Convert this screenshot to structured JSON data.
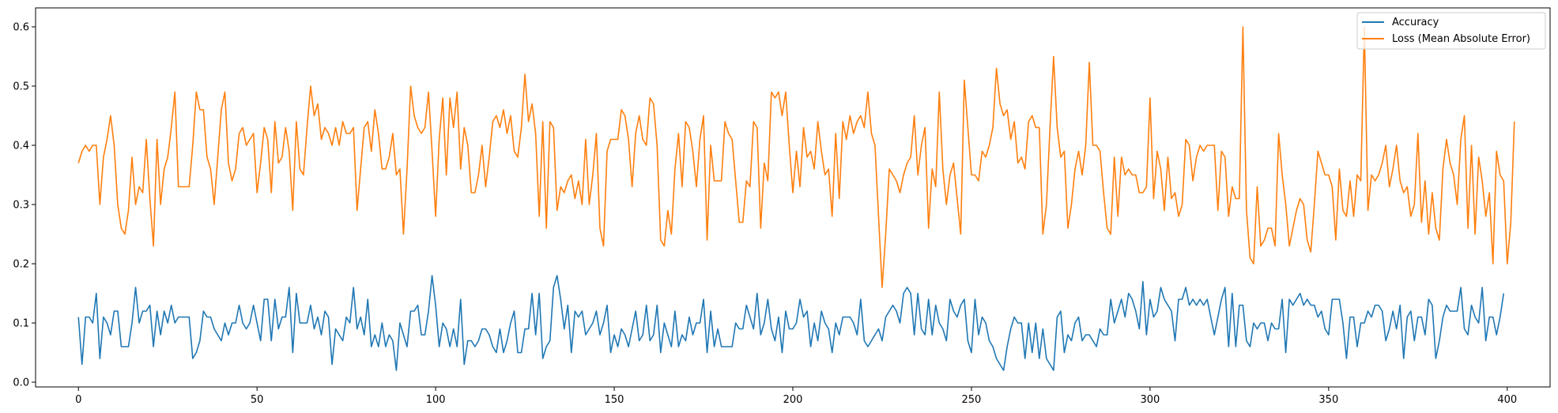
{
  "chart_data": {
    "type": "line",
    "title": "",
    "xlabel": "",
    "ylabel": "",
    "xlim": [
      -12,
      412
    ],
    "ylim": [
      -0.008,
      0.632
    ],
    "xticks": [
      0,
      50,
      100,
      150,
      200,
      250,
      300,
      350,
      400
    ],
    "yticks": [
      0.0,
      0.1,
      0.2,
      0.3,
      0.4,
      0.5,
      0.6
    ],
    "grid": false,
    "legend_position": "top-right",
    "series": [
      {
        "name": "Accuracy",
        "color": "#1f77b4",
        "x_start": 0,
        "values": [
          0.11,
          0.03,
          0.11,
          0.11,
          0.1,
          0.15,
          0.04,
          0.11,
          0.1,
          0.08,
          0.12,
          0.12,
          0.06,
          0.06,
          0.06,
          0.1,
          0.16,
          0.1,
          0.12,
          0.12,
          0.13,
          0.06,
          0.12,
          0.08,
          0.12,
          0.1,
          0.13,
          0.1,
          0.11,
          0.11,
          0.11,
          0.11,
          0.04,
          0.05,
          0.07,
          0.12,
          0.11,
          0.11,
          0.09,
          0.08,
          0.07,
          0.1,
          0.08,
          0.1,
          0.1,
          0.13,
          0.1,
          0.09,
          0.1,
          0.13,
          0.1,
          0.07,
          0.14,
          0.14,
          0.07,
          0.14,
          0.09,
          0.11,
          0.11,
          0.16,
          0.05,
          0.15,
          0.1,
          0.1,
          0.1,
          0.13,
          0.09,
          0.11,
          0.08,
          0.12,
          0.11,
          0.03,
          0.09,
          0.08,
          0.07,
          0.11,
          0.1,
          0.16,
          0.09,
          0.11,
          0.08,
          0.14,
          0.06,
          0.08,
          0.06,
          0.1,
          0.06,
          0.08,
          0.07,
          0.02,
          0.1,
          0.08,
          0.06,
          0.12,
          0.12,
          0.13,
          0.08,
          0.08,
          0.12,
          0.18,
          0.13,
          0.06,
          0.1,
          0.09,
          0.06,
          0.09,
          0.06,
          0.14,
          0.03,
          0.07,
          0.07,
          0.06,
          0.07,
          0.09,
          0.09,
          0.08,
          0.06,
          0.05,
          0.09,
          0.05,
          0.07,
          0.1,
          0.12,
          0.05,
          0.05,
          0.09,
          0.09,
          0.15,
          0.08,
          0.15,
          0.04,
          0.06,
          0.07,
          0.16,
          0.18,
          0.14,
          0.09,
          0.13,
          0.05,
          0.12,
          0.11,
          0.12,
          0.08,
          0.09,
          0.1,
          0.12,
          0.08,
          0.1,
          0.13,
          0.05,
          0.08,
          0.06,
          0.09,
          0.08,
          0.06,
          0.09,
          0.12,
          0.07,
          0.08,
          0.13,
          0.07,
          0.08,
          0.13,
          0.05,
          0.1,
          0.08,
          0.06,
          0.12,
          0.06,
          0.08,
          0.07,
          0.11,
          0.08,
          0.1,
          0.1,
          0.14,
          0.05,
          0.12,
          0.06,
          0.09,
          0.06,
          0.06,
          0.06,
          0.06,
          0.1,
          0.09,
          0.09,
          0.13,
          0.11,
          0.09,
          0.15,
          0.08,
          0.1,
          0.14,
          0.09,
          0.07,
          0.11,
          0.05,
          0.12,
          0.09,
          0.09,
          0.1,
          0.14,
          0.11,
          0.12,
          0.06,
          0.1,
          0.07,
          0.12,
          0.1,
          0.09,
          0.05,
          0.1,
          0.08,
          0.11,
          0.11,
          0.11,
          0.1,
          0.08,
          0.14,
          0.07,
          0.06,
          0.07,
          0.08,
          0.09,
          0.07,
          0.11,
          0.12,
          0.13,
          0.12,
          0.1,
          0.15,
          0.16,
          0.15,
          0.08,
          0.15,
          0.09,
          0.08,
          0.14,
          0.08,
          0.13,
          0.1,
          0.09,
          0.07,
          0.14,
          0.12,
          0.11,
          0.13,
          0.14,
          0.07,
          0.05,
          0.14,
          0.08,
          0.11,
          0.1,
          0.07,
          0.06,
          0.04,
          0.03,
          0.02,
          0.06,
          0.09,
          0.11,
          0.1,
          0.1,
          0.04,
          0.1,
          0.05,
          0.1,
          0.04,
          0.09,
          0.04,
          0.03,
          0.02,
          0.11,
          0.12,
          0.05,
          0.08,
          0.07,
          0.1,
          0.11,
          0.07,
          0.08,
          0.08,
          0.07,
          0.06,
          0.09,
          0.08,
          0.08,
          0.14,
          0.1,
          0.12,
          0.14,
          0.11,
          0.15,
          0.14,
          0.12,
          0.09,
          0.17,
          0.08,
          0.14,
          0.11,
          0.12,
          0.16,
          0.14,
          0.13,
          0.12,
          0.07,
          0.14,
          0.14,
          0.16,
          0.13,
          0.14,
          0.13,
          0.14,
          0.13,
          0.14,
          0.11,
          0.08,
          0.11,
          0.14,
          0.16,
          0.06,
          0.15,
          0.06,
          0.13,
          0.13,
          0.07,
          0.06,
          0.1,
          0.09,
          0.1,
          0.1,
          0.07,
          0.1,
          0.09,
          0.09,
          0.14,
          0.05,
          0.14,
          0.13,
          0.14,
          0.15,
          0.13,
          0.14,
          0.13,
          0.13,
          0.11,
          0.12,
          0.09,
          0.08,
          0.14,
          0.14,
          0.14,
          0.1,
          0.04,
          0.11,
          0.11,
          0.06,
          0.1,
          0.1,
          0.12,
          0.11,
          0.13,
          0.13,
          0.12,
          0.07,
          0.09,
          0.12,
          0.09,
          0.13,
          0.04,
          0.11,
          0.12,
          0.07,
          0.11,
          0.11,
          0.08,
          0.14,
          0.13,
          0.04,
          0.07,
          0.11,
          0.13,
          0.12,
          0.12,
          0.12,
          0.16,
          0.09,
          0.08,
          0.13,
          0.11,
          0.1,
          0.16,
          0.07,
          0.11,
          0.11,
          0.08,
          0.11,
          0.15
        ]
      },
      {
        "name": "Loss (Mean Absolute Error)",
        "color": "#ff7f0e",
        "x_start": 0,
        "values": [
          0.37,
          0.39,
          0.4,
          0.39,
          0.4,
          0.4,
          0.3,
          0.38,
          0.41,
          0.45,
          0.4,
          0.3,
          0.26,
          0.25,
          0.29,
          0.38,
          0.3,
          0.33,
          0.32,
          0.41,
          0.31,
          0.23,
          0.41,
          0.3,
          0.36,
          0.38,
          0.43,
          0.49,
          0.33,
          0.33,
          0.33,
          0.33,
          0.4,
          0.49,
          0.46,
          0.46,
          0.38,
          0.36,
          0.3,
          0.38,
          0.46,
          0.49,
          0.37,
          0.34,
          0.36,
          0.42,
          0.43,
          0.4,
          0.41,
          0.42,
          0.32,
          0.37,
          0.43,
          0.41,
          0.32,
          0.44,
          0.37,
          0.38,
          0.43,
          0.39,
          0.29,
          0.44,
          0.36,
          0.35,
          0.43,
          0.5,
          0.45,
          0.47,
          0.41,
          0.43,
          0.42,
          0.4,
          0.43,
          0.4,
          0.44,
          0.42,
          0.42,
          0.43,
          0.29,
          0.36,
          0.43,
          0.44,
          0.39,
          0.46,
          0.42,
          0.36,
          0.36,
          0.38,
          0.42,
          0.35,
          0.36,
          0.25,
          0.36,
          0.5,
          0.45,
          0.43,
          0.42,
          0.43,
          0.49,
          0.39,
          0.28,
          0.41,
          0.48,
          0.35,
          0.48,
          0.43,
          0.49,
          0.36,
          0.43,
          0.4,
          0.32,
          0.32,
          0.35,
          0.4,
          0.33,
          0.38,
          0.44,
          0.45,
          0.43,
          0.46,
          0.42,
          0.45,
          0.39,
          0.38,
          0.43,
          0.52,
          0.44,
          0.47,
          0.42,
          0.28,
          0.44,
          0.26,
          0.44,
          0.43,
          0.29,
          0.33,
          0.32,
          0.34,
          0.35,
          0.31,
          0.34,
          0.3,
          0.41,
          0.3,
          0.35,
          0.42,
          0.26,
          0.23,
          0.39,
          0.41,
          0.41,
          0.41,
          0.46,
          0.45,
          0.41,
          0.33,
          0.42,
          0.45,
          0.41,
          0.4,
          0.48,
          0.47,
          0.4,
          0.24,
          0.23,
          0.29,
          0.25,
          0.36,
          0.42,
          0.33,
          0.44,
          0.43,
          0.39,
          0.33,
          0.41,
          0.45,
          0.24,
          0.4,
          0.34,
          0.34,
          0.34,
          0.44,
          0.42,
          0.41,
          0.34,
          0.27,
          0.27,
          0.34,
          0.33,
          0.44,
          0.43,
          0.26,
          0.37,
          0.34,
          0.49,
          0.48,
          0.49,
          0.45,
          0.49,
          0.4,
          0.32,
          0.39,
          0.33,
          0.43,
          0.38,
          0.39,
          0.36,
          0.44,
          0.39,
          0.35,
          0.36,
          0.28,
          0.42,
          0.31,
          0.44,
          0.41,
          0.45,
          0.42,
          0.44,
          0.45,
          0.43,
          0.49,
          0.42,
          0.4,
          0.28,
          0.16,
          0.25,
          0.36,
          0.35,
          0.34,
          0.32,
          0.35,
          0.37,
          0.38,
          0.45,
          0.35,
          0.4,
          0.43,
          0.26,
          0.36,
          0.33,
          0.49,
          0.36,
          0.3,
          0.35,
          0.37,
          0.31,
          0.25,
          0.51,
          0.43,
          0.35,
          0.35,
          0.34,
          0.39,
          0.38,
          0.4,
          0.43,
          0.53,
          0.47,
          0.45,
          0.46,
          0.41,
          0.44,
          0.37,
          0.38,
          0.36,
          0.44,
          0.45,
          0.43,
          0.43,
          0.25,
          0.3,
          0.43,
          0.55,
          0.43,
          0.38,
          0.39,
          0.26,
          0.3,
          0.36,
          0.39,
          0.35,
          0.4,
          0.54,
          0.4,
          0.4,
          0.39,
          0.32,
          0.26,
          0.25,
          0.38,
          0.28,
          0.38,
          0.35,
          0.36,
          0.35,
          0.35,
          0.32,
          0.32,
          0.33,
          0.48,
          0.31,
          0.39,
          0.36,
          0.29,
          0.38,
          0.31,
          0.32,
          0.28,
          0.3,
          0.41,
          0.4,
          0.34,
          0.38,
          0.4,
          0.39,
          0.4,
          0.4,
          0.4,
          0.29,
          0.39,
          0.38,
          0.28,
          0.33,
          0.31,
          0.31,
          0.6,
          0.29,
          0.21,
          0.2,
          0.33,
          0.23,
          0.24,
          0.26,
          0.26,
          0.23,
          0.42,
          0.35,
          0.3,
          0.23,
          0.26,
          0.29,
          0.31,
          0.3,
          0.24,
          0.22,
          0.3,
          0.39,
          0.37,
          0.35,
          0.35,
          0.33,
          0.24,
          0.36,
          0.29,
          0.28,
          0.34,
          0.28,
          0.35,
          0.34,
          0.6,
          0.29,
          0.35,
          0.34,
          0.35,
          0.37,
          0.4,
          0.33,
          0.36,
          0.4,
          0.34,
          0.32,
          0.33,
          0.28,
          0.3,
          0.42,
          0.27,
          0.34,
          0.25,
          0.32,
          0.26,
          0.24,
          0.36,
          0.41,
          0.37,
          0.35,
          0.3,
          0.41,
          0.45,
          0.26,
          0.4,
          0.25,
          0.38,
          0.34,
          0.28,
          0.32,
          0.2,
          0.39,
          0.35,
          0.34,
          0.2,
          0.27,
          0.44
        ]
      }
    ]
  }
}
